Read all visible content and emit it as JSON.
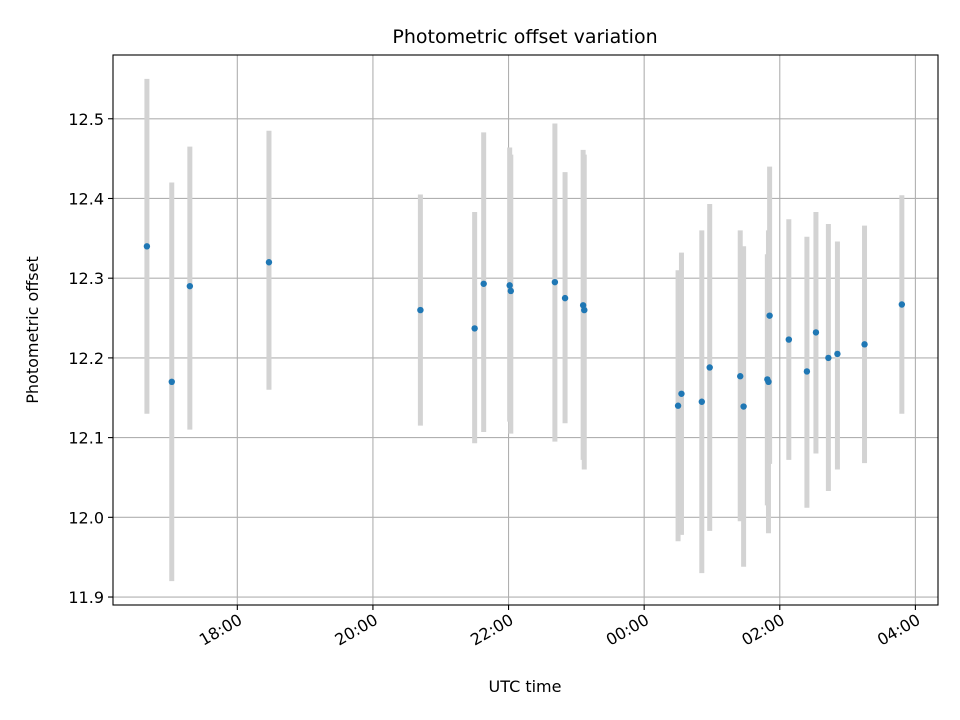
{
  "chart_data": {
    "type": "scatter",
    "title": "Photometric offset variation",
    "xlabel": "UTC time",
    "ylabel": "Photometric offset",
    "xlim": [
      "16:10",
      "04:20"
    ],
    "ylim": [
      11.89,
      12.58
    ],
    "xticks": [
      "18:00",
      "20:00",
      "22:00",
      "00:00",
      "02:00",
      "04:00"
    ],
    "yticks": [
      "11.9",
      "12.0",
      "12.1",
      "12.2",
      "12.3",
      "12.4",
      "12.5"
    ],
    "grid": true,
    "colors": {
      "point": "#1f77b4",
      "errorbar": "#d3d3d3",
      "grid": "#b0b0b0"
    },
    "points": [
      {
        "x": "16:40",
        "y": 12.34,
        "ylo": 12.13,
        "yhi": 12.55
      },
      {
        "x": "17:02",
        "y": 12.17,
        "ylo": 11.92,
        "yhi": 12.42
      },
      {
        "x": "17:18",
        "y": 12.29,
        "ylo": 12.11,
        "yhi": 12.465
      },
      {
        "x": "18:28",
        "y": 12.32,
        "ylo": 12.16,
        "yhi": 12.485
      },
      {
        "x": "20:42",
        "y": 12.26,
        "ylo": 12.115,
        "yhi": 12.405
      },
      {
        "x": "21:30",
        "y": 12.237,
        "ylo": 12.093,
        "yhi": 12.383
      },
      {
        "x": "21:38",
        "y": 12.293,
        "ylo": 12.107,
        "yhi": 12.483
      },
      {
        "x": "22:01",
        "y": 12.291,
        "ylo": 12.12,
        "yhi": 12.464
      },
      {
        "x": "22:02",
        "y": 12.284,
        "ylo": 12.105,
        "yhi": 12.455
      },
      {
        "x": "22:41",
        "y": 12.295,
        "ylo": 12.095,
        "yhi": 12.494
      },
      {
        "x": "22:50",
        "y": 12.275,
        "ylo": 12.118,
        "yhi": 12.433
      },
      {
        "x": "23:06",
        "y": 12.266,
        "ylo": 12.072,
        "yhi": 12.461
      },
      {
        "x": "23:07",
        "y": 12.26,
        "ylo": 12.06,
        "yhi": 12.455
      },
      {
        "x": "00:30",
        "y": 12.14,
        "ylo": 11.97,
        "yhi": 12.31
      },
      {
        "x": "00:33",
        "y": 12.155,
        "ylo": 11.978,
        "yhi": 12.332
      },
      {
        "x": "00:51",
        "y": 12.145,
        "ylo": 11.93,
        "yhi": 12.36
      },
      {
        "x": "00:58",
        "y": 12.188,
        "ylo": 11.983,
        "yhi": 12.393
      },
      {
        "x": "01:25",
        "y": 12.177,
        "ylo": 11.995,
        "yhi": 12.36
      },
      {
        "x": "01:28",
        "y": 12.139,
        "ylo": 11.938,
        "yhi": 12.34
      },
      {
        "x": "01:49",
        "y": 12.173,
        "ylo": 12.015,
        "yhi": 12.33
      },
      {
        "x": "01:50",
        "y": 12.17,
        "ylo": 11.98,
        "yhi": 12.36
      },
      {
        "x": "01:51",
        "y": 12.253,
        "ylo": 12.067,
        "yhi": 12.44
      },
      {
        "x": "02:08",
        "y": 12.223,
        "ylo": 12.072,
        "yhi": 12.374
      },
      {
        "x": "02:24",
        "y": 12.183,
        "ylo": 12.012,
        "yhi": 12.352
      },
      {
        "x": "02:32",
        "y": 12.232,
        "ylo": 12.08,
        "yhi": 12.383
      },
      {
        "x": "02:43",
        "y": 12.2,
        "ylo": 12.033,
        "yhi": 12.368
      },
      {
        "x": "02:51",
        "y": 12.205,
        "ylo": 12.06,
        "yhi": 12.346
      },
      {
        "x": "03:15",
        "y": 12.217,
        "ylo": 12.068,
        "yhi": 12.366
      },
      {
        "x": "03:48",
        "y": 12.267,
        "ylo": 12.13,
        "yhi": 12.404
      }
    ]
  }
}
